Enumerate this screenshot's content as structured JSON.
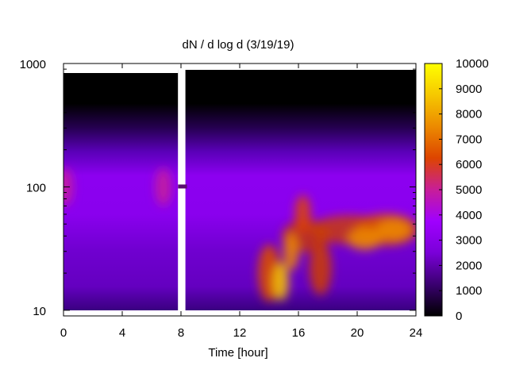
{
  "chart_data": {
    "type": "heatmap",
    "title": "dN / d log d (3/19/19)",
    "xlabel": "Time [hour]",
    "ylabel": "",
    "xlim": [
      0,
      24
    ],
    "ylim": [
      9,
      1000
    ],
    "y_scale": "log",
    "x_ticks": [
      0,
      4,
      8,
      12,
      16,
      20,
      24
    ],
    "x_tick_labels": [
      "0",
      "4",
      "8",
      "12",
      "16",
      "20",
      "24"
    ],
    "y_ticks": [
      10,
      100,
      1000
    ],
    "y_tick_labels": [
      "10",
      "100",
      "1000"
    ],
    "colorbar": {
      "min": 0,
      "max": 10000,
      "ticks": [
        0,
        1000,
        2000,
        3000,
        4000,
        5000,
        6000,
        7000,
        8000,
        9000,
        10000
      ],
      "tick_labels": [
        "0",
        "1000",
        "2000",
        "3000",
        "4000",
        "5000",
        "6000",
        "7000",
        "8000",
        "9000",
        "10000"
      ],
      "colormap": [
        "#000000",
        "#3a0070",
        "#7a00d8",
        "#a000ff",
        "#c81e98",
        "#dd4400",
        "#ec8a00",
        "#f6c800",
        "#ffff00"
      ]
    },
    "data_gap_hours": [
      7.8,
      8.3
    ],
    "hotspots": [
      {
        "time": 14.8,
        "diameter": 17,
        "value": 9000
      },
      {
        "time": 15.5,
        "diameter": 30,
        "value": 7000
      },
      {
        "time": 16.3,
        "diameter": 60,
        "value": 6000
      },
      {
        "time": 20.5,
        "diameter": 38,
        "value": 7500
      },
      {
        "time": 22.5,
        "diameter": 45,
        "value": 7800
      },
      {
        "time": 6.8,
        "diameter": 100,
        "value": 4800
      },
      {
        "time": 0.1,
        "diameter": 100,
        "value": 5000
      }
    ],
    "grid": false,
    "legend": "none"
  }
}
